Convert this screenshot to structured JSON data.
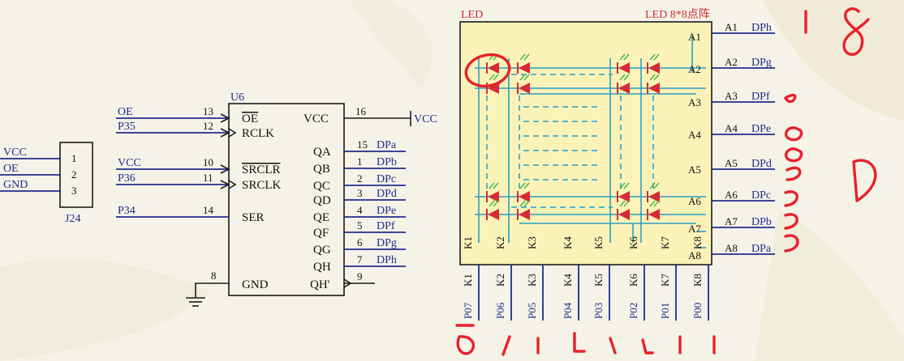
{
  "conn": {
    "name": "J24",
    "pins": [
      "1",
      "2",
      "3"
    ],
    "nets": [
      "VCC",
      "OE",
      "GND"
    ]
  },
  "ic": {
    "name": "U6",
    "vcc_text": "VCC",
    "gnd_text": "GND",
    "left_pins": [
      {
        "net": "OE",
        "num": "13",
        "name": "OE"
      },
      {
        "net": "P35",
        "num": "12",
        "name": "RCLK"
      },
      {
        "net": "VCC",
        "num": "10",
        "name": "SRCLR"
      },
      {
        "net": "P36",
        "num": "11",
        "name": "SRCLK"
      },
      {
        "net": "P34",
        "num": "14",
        "name": "SER"
      }
    ],
    "vcc_pin": {
      "num": "16",
      "name": "VCC"
    },
    "gnd_pin": {
      "num": "8",
      "name": "GND"
    },
    "right_pins": [
      {
        "num": "15",
        "name": "QA",
        "net": "DPa"
      },
      {
        "num": "1",
        "name": "QB",
        "net": "DPb"
      },
      {
        "num": "2",
        "name": "QC",
        "net": "DPc"
      },
      {
        "num": "3",
        "name": "QD",
        "net": "DPd"
      },
      {
        "num": "4",
        "name": "QE",
        "net": "DPe"
      },
      {
        "num": "5",
        "name": "QF",
        "net": "DPf"
      },
      {
        "num": "6",
        "name": "QG",
        "net": "DPg"
      },
      {
        "num": "7",
        "name": "QH",
        "net": "DPh"
      }
    ],
    "qh_prime": {
      "num": "9",
      "name": "QH'"
    }
  },
  "matrix": {
    "title_left": "LED",
    "title_right": "LED 8*8点阵",
    "rows": [
      {
        "pin": "A1",
        "net": "DPh"
      },
      {
        "pin": "A2",
        "net": "DPg"
      },
      {
        "pin": "A3",
        "net": "DPf"
      },
      {
        "pin": "A4",
        "net": "DPe"
      },
      {
        "pin": "A5",
        "net": "DPd"
      },
      {
        "pin": "A6",
        "net": "DPc"
      },
      {
        "pin": "A7",
        "net": "DPb"
      },
      {
        "pin": "A8",
        "net": "DPa"
      }
    ],
    "cols": [
      {
        "pin": "K1",
        "net": "P07"
      },
      {
        "pin": "K2",
        "net": "P06"
      },
      {
        "pin": "K3",
        "net": "P05"
      },
      {
        "pin": "K4",
        "net": "P04"
      },
      {
        "pin": "K5",
        "net": "P03"
      },
      {
        "pin": "K6",
        "net": "P02"
      },
      {
        "pin": "K7",
        "net": "P01"
      },
      {
        "pin": "K8",
        "net": "P00"
      }
    ]
  },
  "colors": {
    "wire": "#1a1a1a",
    "net": "#1f2d8a",
    "matrix_bg": "#fbf2b8",
    "matrix_wire": "#2a9ec2",
    "led": "#d72a32",
    "ink": "#e8212b"
  }
}
